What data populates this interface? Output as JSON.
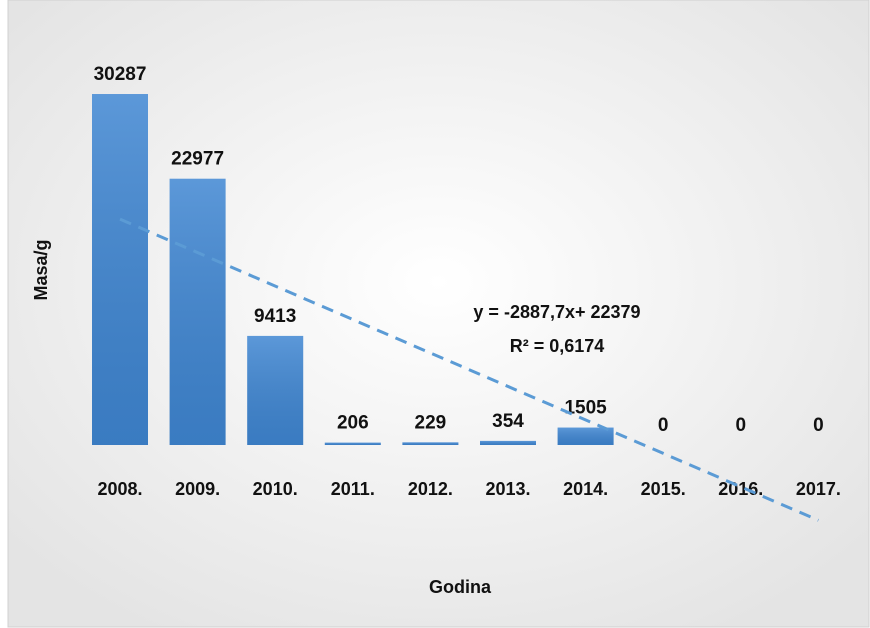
{
  "chart_data": {
    "type": "bar",
    "categories": [
      "2008.",
      "2009.",
      "2010.",
      "2011.",
      "2012.",
      "2013.",
      "2014.",
      "2015.",
      "2016.",
      "2017."
    ],
    "values": [
      30287,
      22977,
      9413,
      206,
      229,
      354,
      1505,
      0,
      0,
      0
    ],
    "color": "#3f86d2",
    "ylim": [
      0,
      35000
    ],
    "xlabel": "Godina",
    "ylabel": "Masa/g",
    "trendline": {
      "label": "y = -2887,7x+ 22379",
      "r2_label": "R² = 0,6174",
      "slope": -2887.7,
      "intercept": 22379,
      "color": "#5b9bd5"
    }
  }
}
